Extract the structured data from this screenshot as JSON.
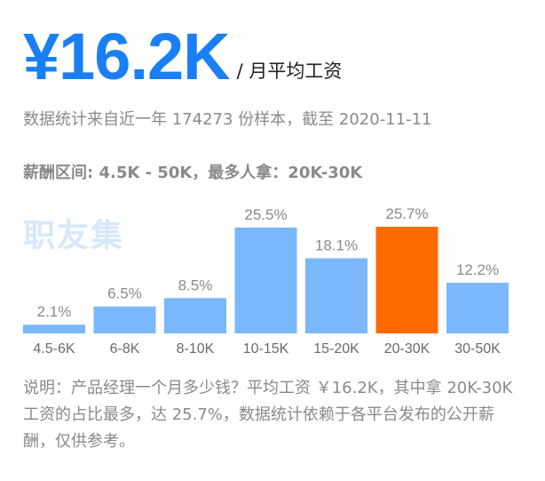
{
  "header": {
    "salary": "¥16.2K",
    "unit": "/ 月平均工资"
  },
  "stats": {
    "line": "数据统计来自近一年 174273 份样本，截至 2020-11-11"
  },
  "range": {
    "line": "薪酬区间: 4.5K - 50K，最多人拿：20K-30K"
  },
  "watermark": {
    "text": "职友集"
  },
  "colors": {
    "bar": "#7ab8fb",
    "highlight": "#ff6a00",
    "salary": "#1a7ff5"
  },
  "chart_data": {
    "type": "bar",
    "title": "",
    "xlabel": "",
    "ylabel": "",
    "categories": [
      "4.5-6K",
      "6-8K",
      "8-10K",
      "10-15K",
      "15-20K",
      "20-30K",
      "30-50K"
    ],
    "values": [
      2.1,
      6.5,
      8.5,
      25.5,
      18.1,
      25.7,
      12.2
    ],
    "value_labels": [
      "2.1%",
      "6.5%",
      "8.5%",
      "25.5%",
      "18.1%",
      "25.7%",
      "12.2%"
    ],
    "highlight_category": "20-30K",
    "ylim": [
      0,
      25.7
    ],
    "grid": false,
    "legend": "none"
  },
  "description": {
    "text": "说明：产品经理一个月多少钱？平均工资 ￥16.2K，其中拿 20K-30K 工资的占比最多，达 25.7%，数据统计依赖于各平台发布的公开薪酬，仅供参考。"
  }
}
